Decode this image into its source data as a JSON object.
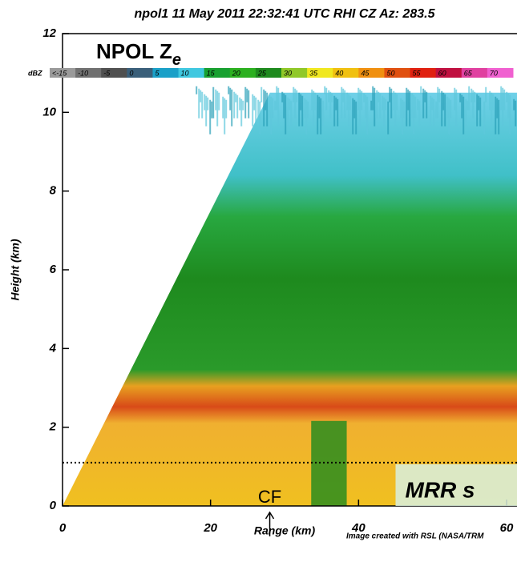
{
  "chart_data": {
    "type": "rhi",
    "title": "npol1  11 May 2011 22:32:41 UTC  RHI  CZ  Az: 283.5",
    "x_label": "Range (km)",
    "y_label": "Height (km)",
    "xlim": [
      0,
      60
    ],
    "ylim": [
      0,
      12
    ],
    "xticks": [
      0,
      20,
      40,
      60
    ],
    "yticks": [
      0,
      2,
      4,
      6,
      8,
      10,
      12
    ],
    "panel_label": {
      "text": "NPOL Z",
      "subscript": "e"
    },
    "colorbar": {
      "label": "dBZ",
      "ticks": [
        {
          "value": -15,
          "label": "<-15"
        },
        -10,
        -5,
        0,
        5,
        10,
        15,
        20,
        25,
        30,
        35,
        40,
        45,
        50,
        55,
        60,
        65,
        70
      ],
      "colors": [
        "#9a9a9a",
        "#707070",
        "#505050",
        "#3a5f7a",
        "#1aa0c8",
        "#40c8e0",
        "#18a030",
        "#2cb020",
        "#1e8a1e",
        "#90c828",
        "#f0e820",
        "#f0c010",
        "#f09010",
        "#e05010",
        "#e02010",
        "#c01040",
        "#e040a0",
        "#f060d0"
      ]
    },
    "reference_height": 1.1,
    "annotations": [
      {
        "text": "CF",
        "x": 28
      }
    ],
    "mrr_box": {
      "text": "MRR s",
      "x": 45
    },
    "footnote": "Image created with RSL (NASA/TRM"
  }
}
